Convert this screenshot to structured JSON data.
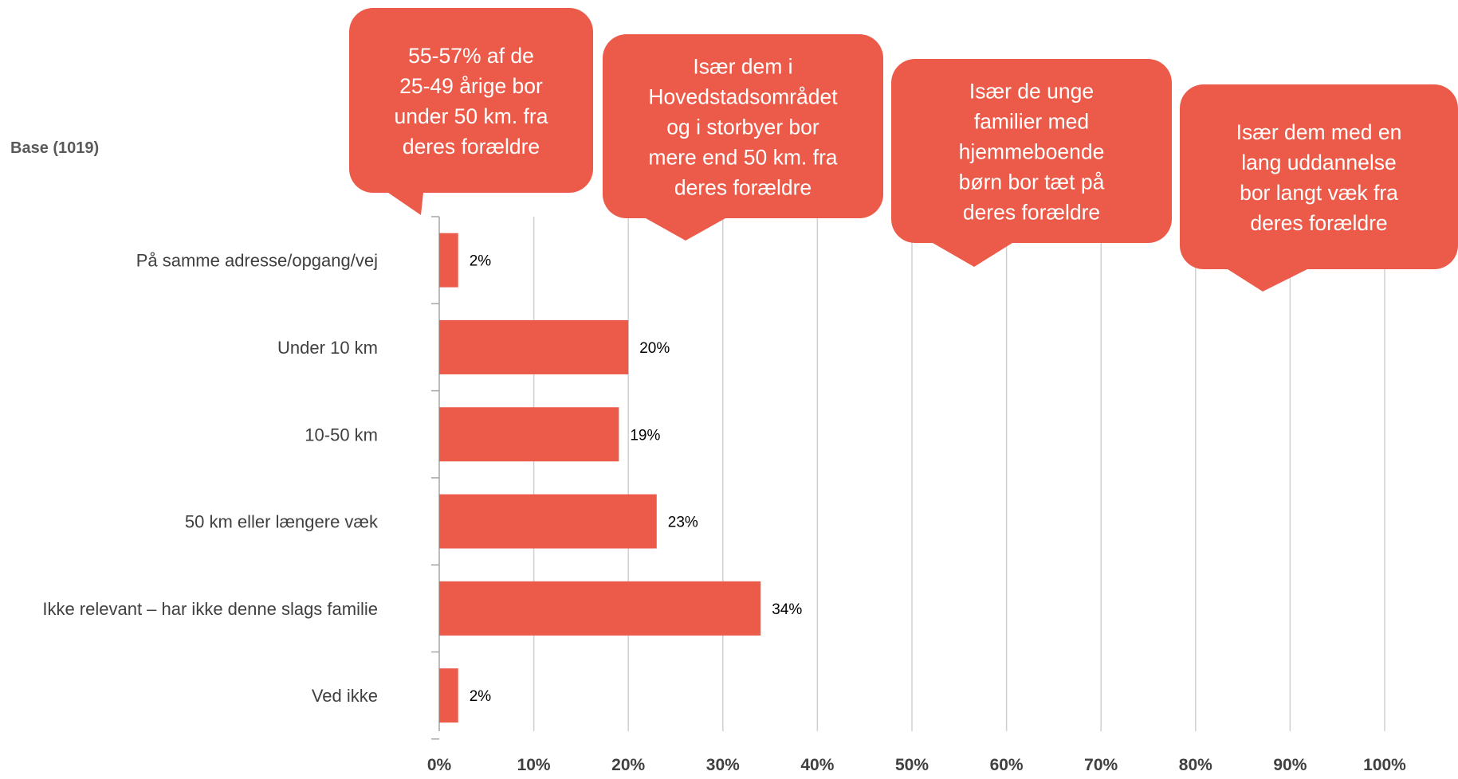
{
  "base_label": "Base (1019)",
  "colors": {
    "bar": "#ec5b49",
    "callout": "#ec5b49",
    "grid": "#d0d0d0",
    "axis": "#a6a6a6"
  },
  "chart_data": {
    "type": "bar",
    "orientation": "horizontal",
    "categories": [
      "På samme adresse/opgang/vej",
      "Under 10 km",
      "10-50 km",
      "50 km eller længere væk",
      "Ikke relevant – har ikke denne slags familie",
      "Ved ikke"
    ],
    "values": [
      2,
      20,
      19,
      23,
      34,
      2
    ],
    "value_labels": [
      "2%",
      "20%",
      "19%",
      "23%",
      "34%",
      "2%"
    ],
    "xlim": [
      0,
      100
    ],
    "x_ticks": [
      "0%",
      "10%",
      "20%",
      "30%",
      "40%",
      "50%",
      "60%",
      "70%",
      "80%",
      "90%",
      "100%"
    ],
    "grid": true,
    "legend": "none",
    "annotations": [
      {
        "lines": [
          "55-57% af de",
          "25-49 årige bor",
          "under 50 km. fra",
          "deres forældre"
        ],
        "points_to": 0
      },
      {
        "lines": [
          "Især dem i",
          "Hovedstadsområdet",
          "og i storbyer bor",
          "mere end 50 km. fra",
          "deres forældre"
        ],
        "points_to": 26
      },
      {
        "lines": [
          "Især de unge",
          "familier med",
          "hjemmeboende",
          "børn bor tæt på",
          "deres forældre"
        ],
        "points_to": 56
      },
      {
        "lines": [
          "Især dem med en",
          "lang uddannelse",
          "bor langt væk fra",
          "deres forældre"
        ],
        "points_to": 87
      }
    ]
  }
}
